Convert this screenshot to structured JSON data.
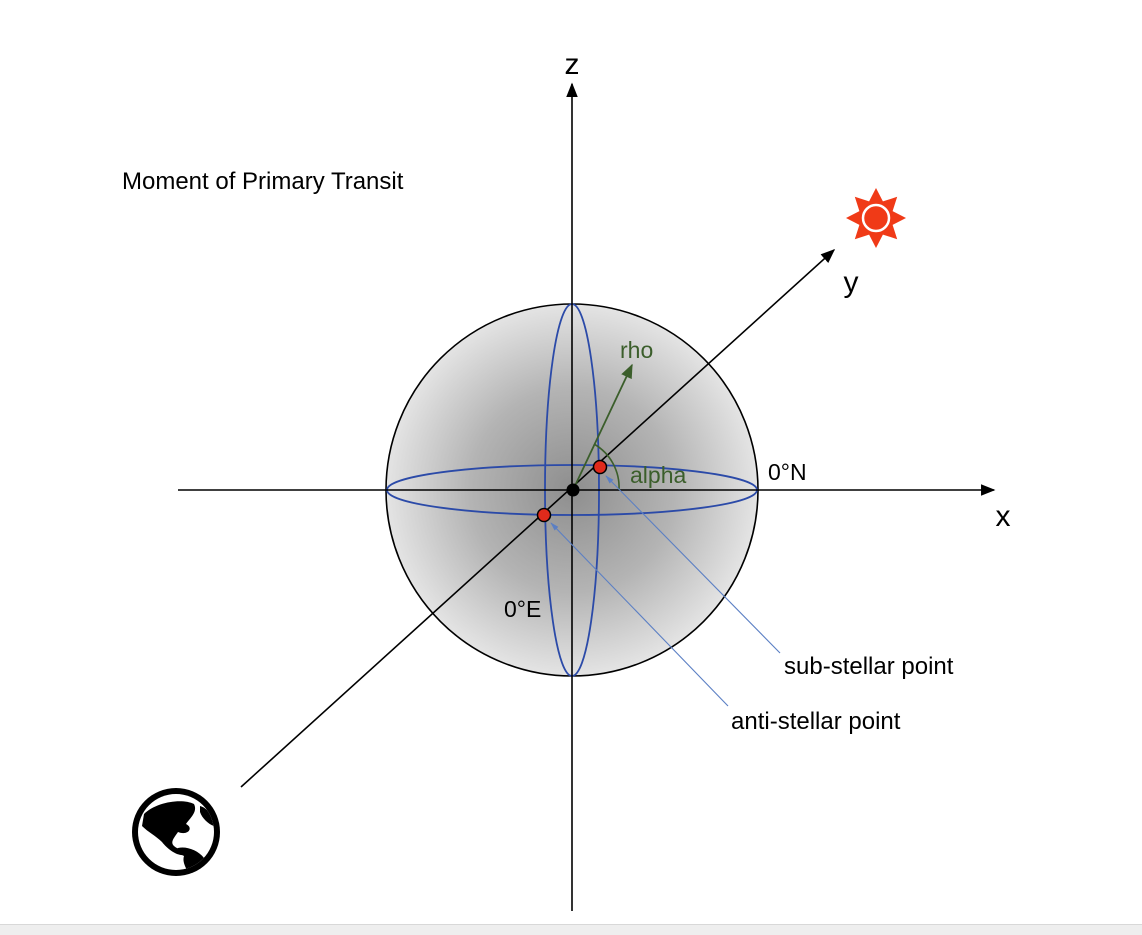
{
  "diagram": {
    "title": "Moment of Primary Transit",
    "axes": {
      "x": "x",
      "y": "y",
      "z": "z"
    },
    "labels": {
      "rho": "rho",
      "alpha": "alpha",
      "lat0": "0°N",
      "lon0": "0°E",
      "sub_stellar": "sub-stellar point",
      "anti_stellar": "anti-stellar point"
    },
    "icons": {
      "star": "sun-icon",
      "observer": "earth-globe-icon"
    },
    "colors": {
      "axis": "#000000",
      "grid": "#2b4aa8",
      "vector": "#3b5e2b",
      "points": "#e02a1b",
      "pointer": "#5b7fc4",
      "star": "#f03a17"
    }
  }
}
